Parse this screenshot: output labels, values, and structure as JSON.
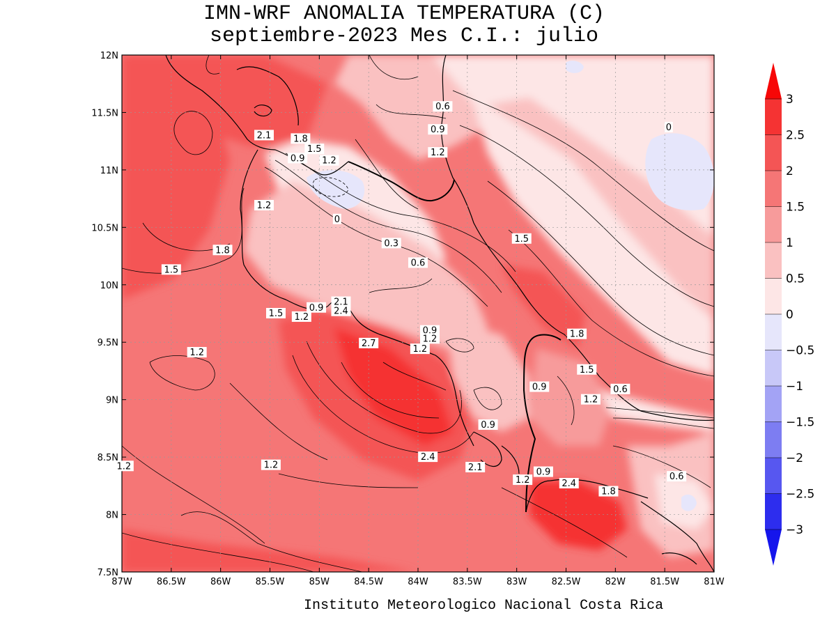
{
  "header": {
    "title_line1": "IMN-WRF  ANOMALIA TEMPERATURA (C)",
    "title_line2": "septiembre-2023 Mes C.I.: julio"
  },
  "footer": {
    "credit": "Instituto Meteorologico Nacional Costa Rica"
  },
  "map": {
    "lon_range": [
      -87,
      -81
    ],
    "lat_range": [
      7.5,
      12
    ],
    "x_ticks": [
      {
        "value": -87,
        "label": "87W"
      },
      {
        "value": -86.5,
        "label": "86.5W"
      },
      {
        "value": -86,
        "label": "86W"
      },
      {
        "value": -85.5,
        "label": "85.5W"
      },
      {
        "value": -85,
        "label": "85W"
      },
      {
        "value": -84.5,
        "label": "84.5W"
      },
      {
        "value": -84,
        "label": "84W"
      },
      {
        "value": -83.5,
        "label": "83.5W"
      },
      {
        "value": -83,
        "label": "83W"
      },
      {
        "value": -82.5,
        "label": "82.5W"
      },
      {
        "value": -82,
        "label": "82W"
      },
      {
        "value": -81.5,
        "label": "81.5W"
      },
      {
        "value": -81,
        "label": "81W"
      }
    ],
    "y_ticks": [
      {
        "value": 12,
        "label": "12N"
      },
      {
        "value": 11.5,
        "label": "11.5N"
      },
      {
        "value": 11,
        "label": "11N"
      },
      {
        "value": 10.5,
        "label": "10.5N"
      },
      {
        "value": 10,
        "label": "10N"
      },
      {
        "value": 9.5,
        "label": "9.5N"
      },
      {
        "value": 9,
        "label": "9N"
      },
      {
        "value": 8.5,
        "label": "8.5N"
      },
      {
        "value": 8,
        "label": "8N"
      },
      {
        "value": 7.5,
        "label": "7.5N"
      }
    ],
    "grid": true,
    "contour_labels": [
      {
        "lon": -85.56,
        "lat": 11.3,
        "text": "2.1"
      },
      {
        "lon": -85.19,
        "lat": 11.27,
        "text": "1.8"
      },
      {
        "lon": -85.05,
        "lat": 11.18,
        "text": "1.5"
      },
      {
        "lon": -84.9,
        "lat": 11.08,
        "text": "1.2"
      },
      {
        "lon": -85.22,
        "lat": 11.1,
        "text": "0.9"
      },
      {
        "lon": -84.82,
        "lat": 10.57,
        "text": "0"
      },
      {
        "lon": -85.56,
        "lat": 10.69,
        "text": "1.2"
      },
      {
        "lon": -85.98,
        "lat": 10.3,
        "text": "1.8"
      },
      {
        "lon": -86.5,
        "lat": 10.13,
        "text": "1.5"
      },
      {
        "lon": -84.27,
        "lat": 10.36,
        "text": "0.3"
      },
      {
        "lon": -84.0,
        "lat": 10.19,
        "text": "0.6"
      },
      {
        "lon": -83.75,
        "lat": 11.55,
        "text": "0.6"
      },
      {
        "lon": -83.8,
        "lat": 11.35,
        "text": "0.9"
      },
      {
        "lon": -83.8,
        "lat": 11.15,
        "text": "1.2"
      },
      {
        "lon": -82.95,
        "lat": 10.4,
        "text": "1.5"
      },
      {
        "lon": -81.46,
        "lat": 11.37,
        "text": "0"
      },
      {
        "lon": -85.44,
        "lat": 9.75,
        "text": "1.5"
      },
      {
        "lon": -85.18,
        "lat": 9.72,
        "text": "1.2"
      },
      {
        "lon": -85.03,
        "lat": 9.8,
        "text": "0.9"
      },
      {
        "lon": -84.78,
        "lat": 9.85,
        "text": "2.1"
      },
      {
        "lon": -84.78,
        "lat": 9.77,
        "text": "2.4"
      },
      {
        "lon": -84.5,
        "lat": 9.49,
        "text": "2.7"
      },
      {
        "lon": -83.98,
        "lat": 9.44,
        "text": "1.2"
      },
      {
        "lon": -83.88,
        "lat": 9.6,
        "text": "0.9"
      },
      {
        "lon": -83.88,
        "lat": 9.53,
        "text": "1.2"
      },
      {
        "lon": -86.24,
        "lat": 9.41,
        "text": "1.2"
      },
      {
        "lon": -82.39,
        "lat": 9.57,
        "text": "1.8"
      },
      {
        "lon": -82.29,
        "lat": 9.26,
        "text": "1.5"
      },
      {
        "lon": -82.25,
        "lat": 9.0,
        "text": "1.2"
      },
      {
        "lon": -81.95,
        "lat": 9.09,
        "text": "0.6"
      },
      {
        "lon": -82.77,
        "lat": 9.11,
        "text": "0.9"
      },
      {
        "lon": -83.29,
        "lat": 8.78,
        "text": "0.9"
      },
      {
        "lon": -83.9,
        "lat": 8.5,
        "text": "2.4"
      },
      {
        "lon": -83.42,
        "lat": 8.41,
        "text": "2.1"
      },
      {
        "lon": -82.94,
        "lat": 8.3,
        "text": "1.2"
      },
      {
        "lon": -82.73,
        "lat": 8.37,
        "text": "0.9"
      },
      {
        "lon": -82.47,
        "lat": 8.27,
        "text": "2.4"
      },
      {
        "lon": -82.07,
        "lat": 8.2,
        "text": "1.8"
      },
      {
        "lon": -81.38,
        "lat": 8.33,
        "text": "0.6"
      },
      {
        "lon": -86.98,
        "lat": 8.42,
        "text": "1.2"
      },
      {
        "lon": -85.49,
        "lat": 8.43,
        "text": "1.2"
      }
    ]
  },
  "colorbar": {
    "levels": [
      "3",
      "2.5",
      "2",
      "1.5",
      "1",
      "0.5",
      "0",
      "−0.5",
      "−1",
      "−1.5",
      "−2",
      "−2.5",
      "−3"
    ],
    "colors_top_to_bottom": [
      "#f70707",
      "#f53333",
      "#f45555",
      "#f57676",
      "#f79b9b",
      "#fac1c1",
      "#fde6e6",
      "#e6e6fb",
      "#c8c8f8",
      "#a3a3f5",
      "#7d7df2",
      "#5757f0",
      "#2d2dee",
      "#1515ec"
    ]
  }
}
